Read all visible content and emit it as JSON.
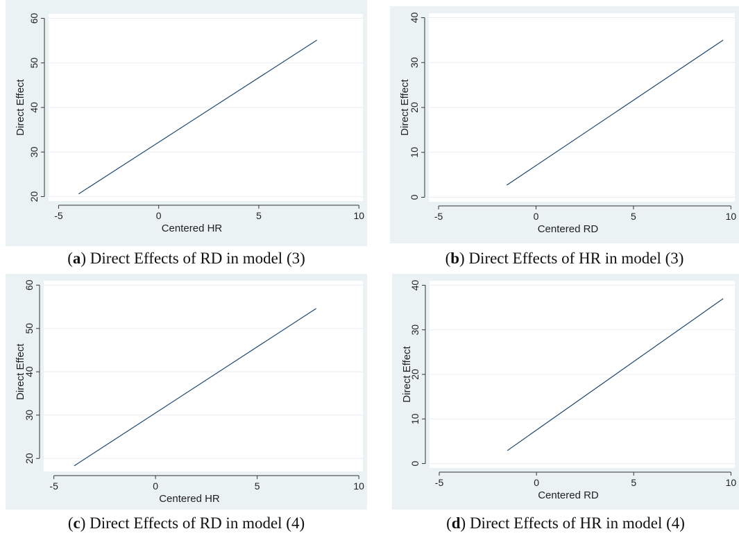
{
  "colors": {
    "panel_background": "#eaf2f3",
    "plot_background": "#ffffff",
    "grid": "#e8eef0",
    "line": "#1a476f",
    "axis": "#333333"
  },
  "chart_data": [
    {
      "type": "line",
      "xlabel": "Centered HR",
      "ylabel": "Direct Effect",
      "xticks": [
        -5,
        0,
        5,
        10
      ],
      "yticks": [
        20,
        30,
        40,
        50,
        60
      ],
      "xlim": [
        -5.5,
        10.2
      ],
      "ylim": [
        19,
        61
      ],
      "grid": true,
      "x": [
        -4,
        7.9
      ],
      "y": [
        20.6,
        55.1
      ],
      "caption": {
        "letter": "a",
        "text": ") Direct Effects of RD in model (3)"
      }
    },
    {
      "type": "line",
      "xlabel": "Centered RD",
      "ylabel": "Direct Effect",
      "xticks": [
        -5,
        0,
        5,
        10
      ],
      "yticks": [
        0,
        10,
        20,
        30,
        40
      ],
      "xlim": [
        -5.5,
        10.2
      ],
      "ylim": [
        -1,
        41
      ],
      "grid": true,
      "x": [
        -1.5,
        9.6
      ],
      "y": [
        2.7,
        35
      ],
      "caption": {
        "letter": "b",
        "text": ") Direct Effects of HR in model (3)"
      }
    },
    {
      "type": "line",
      "xlabel": "Centered HR",
      "ylabel": "Direct Effect",
      "xticks": [
        -5,
        0,
        5,
        10
      ],
      "yticks": [
        20,
        30,
        40,
        50,
        60
      ],
      "xlim": [
        -5.5,
        10.2
      ],
      "ylim": [
        17,
        61
      ],
      "grid": true,
      "x": [
        -4,
        7.9
      ],
      "y": [
        18.3,
        54.6
      ],
      "caption": {
        "letter": "c",
        "text": ") Direct Effects of RD in model (4)"
      }
    },
    {
      "type": "line",
      "xlabel": "Centered RD",
      "ylabel": "Direct Effect",
      "xticks": [
        -5,
        0,
        5,
        10
      ],
      "yticks": [
        0,
        10,
        20,
        30,
        40
      ],
      "xlim": [
        -5.5,
        10.2
      ],
      "ylim": [
        -1,
        41
      ],
      "grid": true,
      "x": [
        -1.5,
        9.6
      ],
      "y": [
        2.9,
        37
      ],
      "caption": {
        "letter": "d",
        "text": ") Direct Effects of HR in model (4)"
      }
    }
  ]
}
